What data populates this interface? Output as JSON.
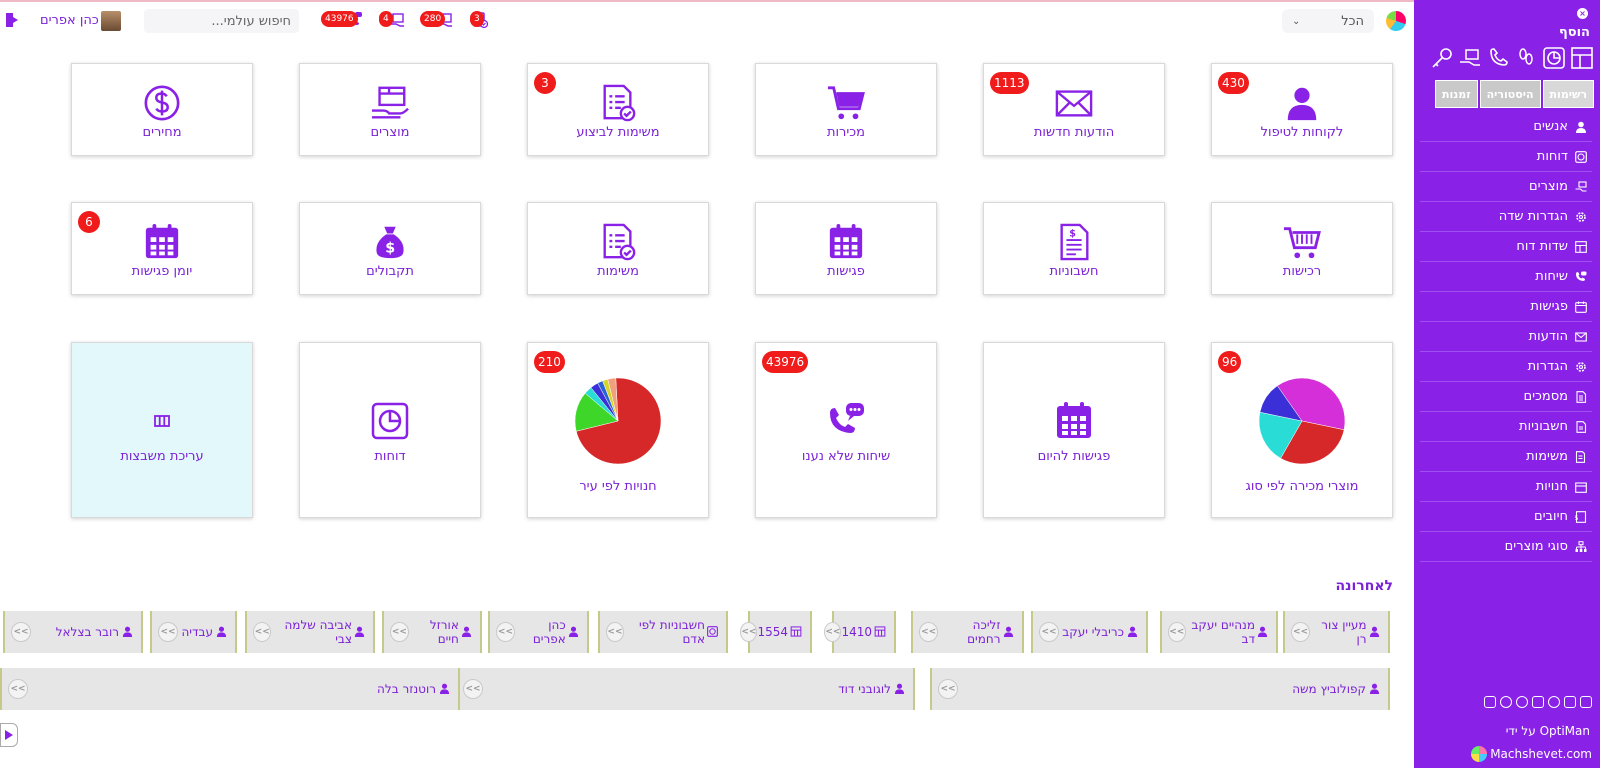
{
  "sidebar": {
    "add_label": "הוסף",
    "tabs": [
      "רשימות",
      "היסטוריה",
      "זמנות"
    ],
    "items": [
      {
        "label": "אנשים",
        "icon": "person-icon"
      },
      {
        "label": "דוחות",
        "icon": "report-icon"
      },
      {
        "label": "מוצרים",
        "icon": "box-icon"
      },
      {
        "label": "הגדרות שדה",
        "icon": "gear-icon"
      },
      {
        "label": "שדות דוח",
        "icon": "layout-icon"
      },
      {
        "label": "שיחות",
        "icon": "phone-icon"
      },
      {
        "label": "פגישות",
        "icon": "calendar-icon"
      },
      {
        "label": "הודעות",
        "icon": "envelope-icon"
      },
      {
        "label": "הגדרות",
        "icon": "gear-icon"
      },
      {
        "label": "מסמכים",
        "icon": "document-icon"
      },
      {
        "label": "חשבוניות",
        "icon": "invoice-icon"
      },
      {
        "label": "משימות",
        "icon": "tasks-icon"
      },
      {
        "label": "חנויות",
        "icon": "store-icon"
      },
      {
        "label": "חיובים",
        "icon": "charge-icon"
      },
      {
        "label": "סוגי מוצרים",
        "icon": "hierarchy-icon"
      }
    ],
    "by_label": "OptiMan על ידי",
    "site": "Machshevet.com"
  },
  "topbar": {
    "filter_value": "הכל",
    "search_placeholder": "חיפוש עולמי...",
    "user_name": "כהן אפרים",
    "badges": [
      {
        "value": "3",
        "icon": "tasks-icon"
      },
      {
        "value": "280",
        "icon": "box-icon"
      },
      {
        "value": "4",
        "icon": "box-icon"
      },
      {
        "value": "43976",
        "icon": "phone-chat-icon"
      }
    ]
  },
  "tiles": [
    {
      "label": "לקוחות לטיפול",
      "badge": "430",
      "icon": "person-icon"
    },
    {
      "label": "הודעות חדשות",
      "badge": "1113",
      "icon": "envelope-icon"
    },
    {
      "label": "מכירות",
      "badge": "",
      "icon": "cart-icon"
    },
    {
      "label": "משימות לביצוע",
      "badge": "3",
      "icon": "tasks-icon"
    },
    {
      "label": "מוצרים",
      "badge": "",
      "icon": "box-icon"
    },
    {
      "label": "מחירים",
      "badge": "",
      "icon": "dollar-icon"
    },
    {
      "label": "רכישות",
      "badge": "",
      "icon": "basket-icon"
    },
    {
      "label": "חשבוניות",
      "badge": "",
      "icon": "invoice-icon"
    },
    {
      "label": "פגישות",
      "badge": "",
      "icon": "calendar-icon"
    },
    {
      "label": "משימות",
      "badge": "",
      "icon": "tasks-icon"
    },
    {
      "label": "תקבולים",
      "badge": "",
      "icon": "money-bag-icon"
    },
    {
      "label": "יומן פגישות",
      "badge": "6",
      "icon": "calendar-icon"
    },
    {
      "label": "מוצרי מכירה לפי סוג",
      "badge": "96",
      "icon": "pie-chart"
    },
    {
      "label": "פגישות להיום",
      "badge": "",
      "icon": "calendar-icon"
    },
    {
      "label": "שיחות שלא נענו",
      "badge": "43976",
      "icon": "phone-chat-icon"
    },
    {
      "label": "חנויות לפי עיר",
      "badge": "210",
      "icon": "pie-chart"
    },
    {
      "label": "דוחות",
      "badge": "",
      "icon": "report-icon"
    },
    {
      "label": "עריכת משבצות",
      "badge": "",
      "icon": "columns-icon"
    }
  ],
  "chart_data": [
    {
      "type": "pie",
      "title": "מוצרי מכירה לפי סוג",
      "values": [
        38,
        30,
        20,
        12
      ],
      "colors": [
        "#d42fd8",
        "#d62828",
        "#2adcd6",
        "#3b2fd8"
      ]
    },
    {
      "type": "pie",
      "title": "חנויות לפי עיר",
      "values": [
        72,
        15,
        3,
        3,
        2,
        2,
        3
      ],
      "colors": [
        "#d62828",
        "#3fd62a",
        "#2adcd6",
        "#3b2fd8",
        "#2a62d6",
        "#d6d62a",
        "#f2a07b"
      ]
    }
  ],
  "recent": {
    "title": "לאחרונה",
    "row1": [
      {
        "label": "מעיין צור רן",
        "icon": "person-icon"
      },
      {
        "label": "מנהיים יעקב דב",
        "icon": "person-icon"
      },
      {
        "label": "כריבלי יעקב",
        "icon": "person-icon"
      },
      {
        "label": "זליכה רחמים",
        "icon": "person-icon"
      },
      {
        "label": "1410",
        "icon": "layout-icon"
      },
      {
        "label": "1554",
        "icon": "layout-icon"
      },
      {
        "label": "חשבוניות לפי אדם",
        "icon": "report-icon"
      },
      {
        "label": "כהן אפרים",
        "icon": "person-icon"
      },
      {
        "label": "אורזל חיים",
        "icon": "person-icon"
      },
      {
        "label": "אביבה שלמה צבי",
        "icon": "person-icon"
      },
      {
        "label": "עבדיה",
        "icon": "person-icon"
      },
      {
        "label": "רובר בצלאל",
        "icon": "person-icon"
      }
    ],
    "row2": [
      {
        "label": "קפולוביץ משה",
        "icon": "person-icon"
      },
      {
        "label": "לוגובני דוד",
        "icon": "person-icon"
      },
      {
        "label": "רוטנזר בלה",
        "icon": "person-icon"
      }
    ],
    "go_label": ">>"
  }
}
